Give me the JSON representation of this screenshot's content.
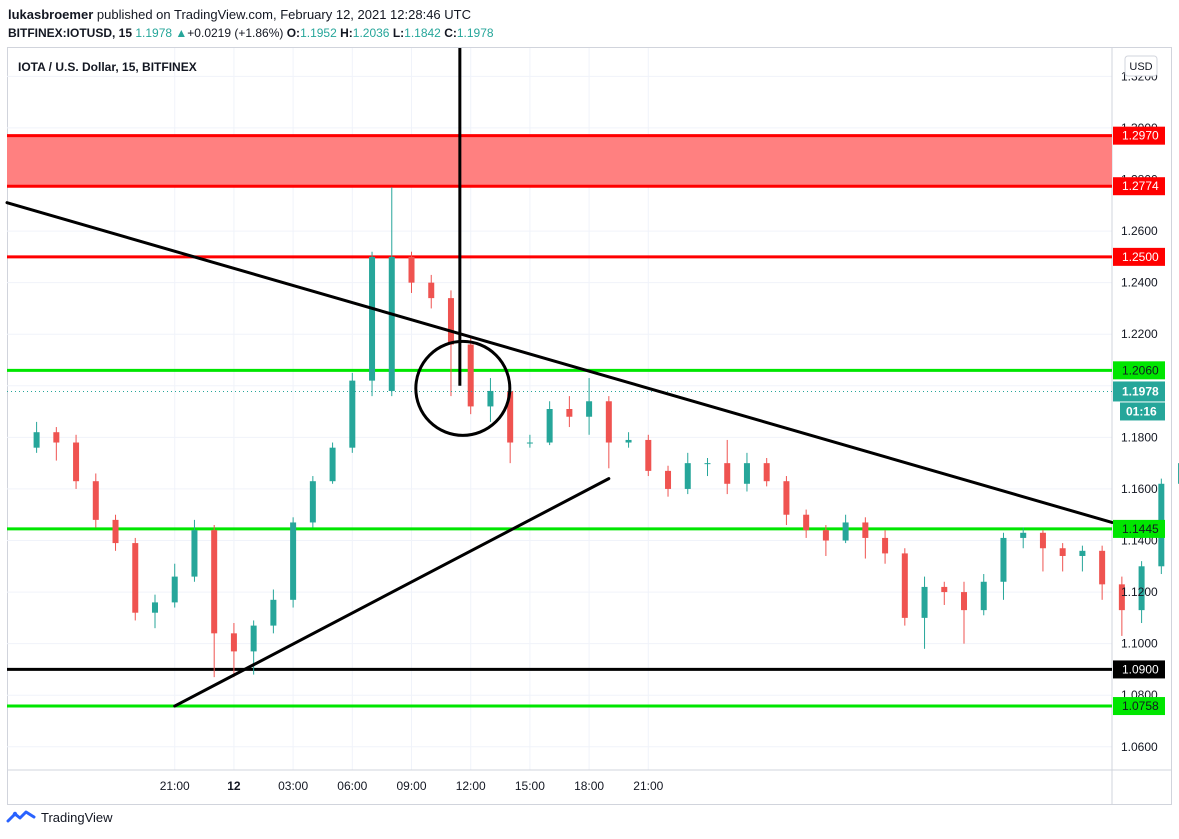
{
  "header": {
    "author": "lukasbroemer",
    "published_text": "published on TradingView.com, February 12, 2021 12:28:46 UTC",
    "symbol": "BITFINEX:IOTUSD, 15",
    "last": "1.1978",
    "change_arrow": "▲",
    "change": "+0.0219 (+1.86%)",
    "o_label": "O:",
    "o_value": "1.1952",
    "h_label": "H:",
    "h_value": "1.2036",
    "l_label": "L:",
    "l_value": "1.1842",
    "c_label": "C:",
    "c_value": "1.1978"
  },
  "footer": {
    "brand": "TradingView",
    "logo_icon": "tradingview-logo-icon"
  },
  "colors": {
    "up": "#26a69a",
    "down": "#ef5350",
    "resistance": "#ff0000",
    "support": "#00e600",
    "zone": "#ff8080",
    "trend": "#000000"
  },
  "chart_data": {
    "type": "candlestick",
    "title": "IOTA / U.S. Dollar, 15, BITFINEX",
    "currency": "USD",
    "ylim": [
      1.051,
      1.331
    ],
    "xlim": [
      -11.5,
      44.5
    ],
    "yticks": [
      {
        "v": 1.06,
        "label": "1.0600"
      },
      {
        "v": 1.08,
        "label": "1.0800"
      },
      {
        "v": 1.1,
        "label": "1.1000"
      },
      {
        "v": 1.12,
        "label": "1.1200"
      },
      {
        "v": 1.14,
        "label": "1.1400"
      },
      {
        "v": 1.16,
        "label": "1.1600"
      },
      {
        "v": 1.18,
        "label": "1.1800"
      },
      {
        "v": 1.2,
        "label": "1.2000"
      },
      {
        "v": 1.22,
        "label": "1.2200"
      },
      {
        "v": 1.24,
        "label": "1.2400"
      },
      {
        "v": 1.26,
        "label": "1.2600"
      },
      {
        "v": 1.28,
        "label": "1.2800"
      },
      {
        "v": 1.3,
        "label": "1.3000"
      },
      {
        "v": 1.32,
        "label": "1.3200"
      }
    ],
    "xticks": [
      {
        "t": -3,
        "label": "21:00",
        "bold": false
      },
      {
        "t": 0,
        "label": "12",
        "bold": true
      },
      {
        "t": 3,
        "label": "03:00",
        "bold": false
      },
      {
        "t": 6,
        "label": "06:00",
        "bold": false
      },
      {
        "t": 9,
        "label": "09:00",
        "bold": false
      },
      {
        "t": 12,
        "label": "12:00",
        "bold": false
      },
      {
        "t": 15,
        "label": "15:00",
        "bold": false
      },
      {
        "t": 18,
        "label": "18:00",
        "bold": false
      },
      {
        "t": 21,
        "label": "21:00",
        "bold": false
      }
    ],
    "candles": [
      [
        1.176,
        1.182,
        1.186,
        1.174
      ],
      [
        1.182,
        1.178,
        1.184,
        1.171
      ],
      [
        1.178,
        1.163,
        1.181,
        1.16
      ],
      [
        1.163,
        1.148,
        1.166,
        1.145
      ],
      [
        1.148,
        1.139,
        1.15,
        1.136
      ],
      [
        1.139,
        1.112,
        1.141,
        1.109
      ],
      [
        1.112,
        1.116,
        1.119,
        1.106
      ],
      [
        1.116,
        1.126,
        1.131,
        1.114
      ],
      [
        1.126,
        1.144,
        1.148,
        1.124
      ],
      [
        1.144,
        1.104,
        1.146,
        1.087
      ],
      [
        1.104,
        1.097,
        1.108,
        1.087
      ],
      [
        1.097,
        1.107,
        1.109,
        1.088
      ],
      [
        1.107,
        1.117,
        1.121,
        1.104
      ],
      [
        1.117,
        1.147,
        1.149,
        1.114
      ],
      [
        1.147,
        1.163,
        1.165,
        1.145
      ],
      [
        1.163,
        1.176,
        1.178,
        1.162
      ],
      [
        1.176,
        1.202,
        1.205,
        1.174
      ],
      [
        1.202,
        1.25,
        1.252,
        1.196
      ],
      [
        1.198,
        1.25,
        1.277,
        1.196
      ],
      [
        1.25,
        1.24,
        1.252,
        1.236
      ],
      [
        1.24,
        1.234,
        1.243,
        1.23
      ],
      [
        1.234,
        1.216,
        1.237,
        1.196
      ],
      [
        1.216,
        1.192,
        1.219,
        1.189
      ],
      [
        1.192,
        1.198,
        1.203,
        1.186
      ],
      [
        1.198,
        1.178,
        1.201,
        1.17
      ],
      [
        1.178,
        1.178,
        1.181,
        1.176
      ],
      [
        1.178,
        1.191,
        1.194,
        1.177
      ],
      [
        1.191,
        1.188,
        1.196,
        1.184
      ],
      [
        1.188,
        1.194,
        1.203,
        1.181
      ],
      [
        1.194,
        1.178,
        1.196,
        1.168
      ],
      [
        1.178,
        1.179,
        1.182,
        1.176
      ],
      [
        1.179,
        1.167,
        1.181,
        1.165
      ],
      [
        1.167,
        1.16,
        1.169,
        1.157
      ],
      [
        1.16,
        1.17,
        1.174,
        1.158
      ],
      [
        1.17,
        1.17,
        1.172,
        1.165
      ],
      [
        1.17,
        1.162,
        1.179,
        1.158
      ],
      [
        1.162,
        1.17,
        1.174,
        1.159
      ],
      [
        1.17,
        1.163,
        1.172,
        1.161
      ],
      [
        1.163,
        1.15,
        1.165,
        1.146
      ],
      [
        1.15,
        1.144,
        1.152,
        1.141
      ],
      [
        1.144,
        1.14,
        1.146,
        1.134
      ],
      [
        1.14,
        1.147,
        1.15,
        1.139
      ],
      [
        1.147,
        1.141,
        1.149,
        1.133
      ],
      [
        1.141,
        1.135,
        1.144,
        1.131
      ],
      [
        1.135,
        1.11,
        1.137,
        1.107
      ],
      [
        1.11,
        1.122,
        1.126,
        1.098
      ],
      [
        1.122,
        1.12,
        1.124,
        1.115
      ],
      [
        1.12,
        1.113,
        1.124,
        1.1
      ],
      [
        1.113,
        1.124,
        1.127,
        1.111
      ],
      [
        1.124,
        1.141,
        1.143,
        1.117
      ],
      [
        1.141,
        1.143,
        1.145,
        1.137
      ],
      [
        1.143,
        1.137,
        1.144,
        1.128
      ],
      [
        1.137,
        1.134,
        1.139,
        1.128
      ],
      [
        1.134,
        1.136,
        1.138,
        1.128
      ],
      [
        1.136,
        1.123,
        1.138,
        1.117
      ],
      [
        1.123,
        1.113,
        1.126,
        1.103
      ],
      [
        1.113,
        1.13,
        1.132,
        1.108
      ],
      [
        1.13,
        1.162,
        1.164,
        1.127
      ],
      [
        1.162,
        1.17,
        1.172,
        1.158
      ],
      [
        1.17,
        1.185,
        1.187,
        1.162
      ],
      [
        1.185,
        1.182,
        1.187,
        1.175
      ],
      [
        1.182,
        1.169,
        1.184,
        1.158
      ],
      [
        1.169,
        1.18,
        1.19,
        1.167
      ],
      [
        1.18,
        1.189,
        1.198,
        1.176
      ],
      [
        1.189,
        1.176,
        1.209,
        1.172
      ],
      [
        1.176,
        1.187,
        1.189,
        1.172
      ],
      [
        1.187,
        1.164,
        1.189,
        1.16
      ],
      [
        1.164,
        1.159,
        1.167,
        1.154
      ],
      [
        1.159,
        1.144,
        1.161,
        1.141
      ],
      [
        1.144,
        1.137,
        1.146,
        1.131
      ],
      [
        1.137,
        1.132,
        1.141,
        1.129
      ],
      [
        1.132,
        1.138,
        1.144,
        1.128
      ],
      [
        1.138,
        1.138,
        1.14,
        1.129
      ],
      [
        1.138,
        1.154,
        1.159,
        1.136
      ],
      [
        1.154,
        1.166,
        1.17,
        1.152
      ],
      [
        1.166,
        1.169,
        1.174,
        1.163
      ],
      [
        1.169,
        1.162,
        1.175,
        1.158
      ],
      [
        1.162,
        1.157,
        1.164,
        1.152
      ],
      [
        1.157,
        1.164,
        1.167,
        1.155
      ],
      [
        1.164,
        1.166,
        1.167,
        1.162
      ],
      [
        1.166,
        1.18,
        1.182,
        1.165
      ],
      [
        1.18,
        1.229,
        1.235,
        1.178
      ],
      [
        1.229,
        1.213,
        1.238,
        1.182
      ],
      [
        1.213,
        1.196,
        1.217,
        1.19
      ],
      [
        1.196,
        1.198,
        1.203,
        1.184
      ]
    ],
    "price_lines": [
      {
        "name": "resistance-line-1",
        "value": 1.297,
        "label": "1.2970",
        "color": "#ff0000",
        "width": 3
      },
      {
        "name": "resistance-line-2",
        "value": 1.2774,
        "label": "1.2774",
        "color": "#ff0000",
        "width": 3
      },
      {
        "name": "resistance-line-3",
        "value": 1.25,
        "label": "1.2500",
        "color": "#ff0000",
        "width": 3
      },
      {
        "name": "support-line-1",
        "value": 1.206,
        "label": "1.2060",
        "color": "#00e600",
        "width": 3
      },
      {
        "name": "support-line-2",
        "value": 1.1445,
        "label": "1.1445",
        "color": "#00e600",
        "width": 3
      },
      {
        "name": "support-line-3",
        "value": 1.09,
        "label": "1.0900",
        "color": "#000000",
        "width": 3
      },
      {
        "name": "support-line-4",
        "value": 1.0758,
        "label": "1.0758",
        "color": "#00e600",
        "width": 3
      }
    ],
    "resistance_zone": [
      1.2774,
      1.297
    ],
    "trendlines": [
      {
        "name": "descending-trendline",
        "t1": -11.5,
        "p1": 1.271,
        "t2": 44.5,
        "p2": 1.147
      },
      {
        "name": "ascending-trendline",
        "t1": -3,
        "p1": 1.0758,
        "t2": 19,
        "p2": 1.164
      }
    ],
    "vertical_line": {
      "t": 11.45,
      "from": 1.331,
      "to": 1.2
    },
    "circle": {
      "t": 11.6,
      "p": 1.199,
      "r": 47
    },
    "last_price": {
      "value": 1.1978,
      "label": "1.1978",
      "countdown": "01:16"
    }
  }
}
